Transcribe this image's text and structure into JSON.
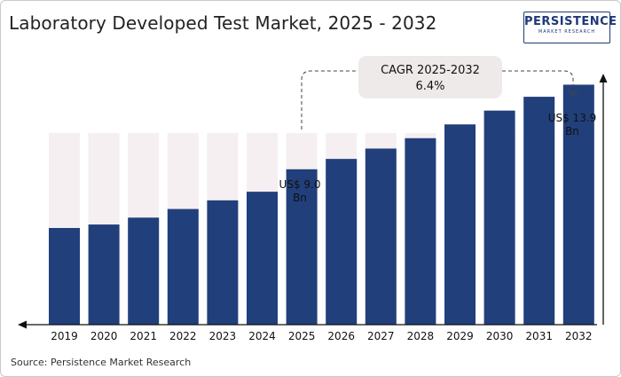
{
  "title": "Laboratory Developed Test Market, 2025 - 2032",
  "logo": {
    "main": "PERSISTENCE",
    "sub": "MARKET RESEARCH"
  },
  "source": "Source: Persistence Market Research",
  "cagr": {
    "line1": "CAGR 2025-2032",
    "line2": "6.4%"
  },
  "callouts": {
    "c2025_line1": "US$ 9.0",
    "c2025_line2": "Bn",
    "c2032_line1": "US$ 13.9",
    "c2032_line2": "Bn"
  },
  "colors": {
    "bar": "#213f7b",
    "track": "#f5eff1",
    "axis": "#111111",
    "cagr_box": "#eeeaea"
  },
  "chart_data": {
    "type": "bar",
    "title": "Laboratory Developed Test Market, 2025 - 2032",
    "categories": [
      "2019",
      "2020",
      "2021",
      "2022",
      "2023",
      "2024",
      "2025",
      "2026",
      "2027",
      "2028",
      "2029",
      "2030",
      "2031",
      "2032"
    ],
    "values": [
      5.6,
      5.8,
      6.2,
      6.7,
      7.2,
      7.7,
      9.0,
      9.6,
      10.2,
      10.8,
      11.6,
      12.4,
      13.2,
      13.9
    ],
    "unit": "US$ Bn",
    "ylim": [
      0,
      14.9
    ],
    "grid": false,
    "legend": "none"
  }
}
